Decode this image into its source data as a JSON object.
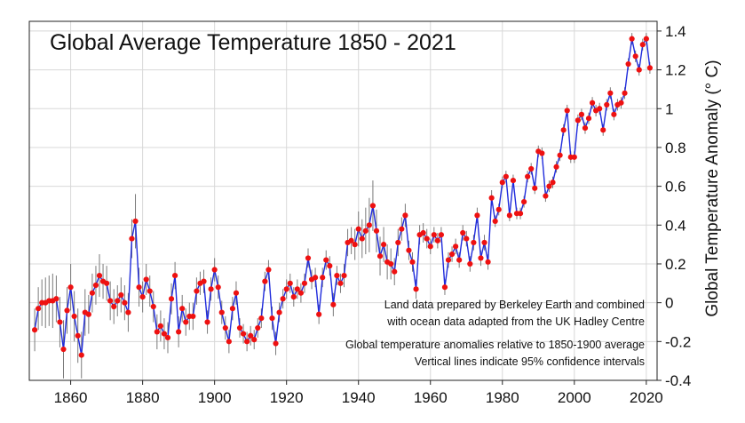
{
  "chart_data": {
    "type": "line",
    "title": "Global Average Temperature 1850 - 2021",
    "xlabel": "",
    "ylabel": "Global Temperature Anomaly (° C)",
    "xlim": [
      1848.5,
      2023
    ],
    "ylim": [
      -0.4,
      1.45
    ],
    "x_ticks": [
      "1860",
      "1880",
      "1900",
      "1920",
      "1940",
      "1960",
      "1980",
      "2000",
      "2020"
    ],
    "y_ticks": [
      "1.4",
      "1.2",
      "1",
      "0.8",
      "0.6",
      "0.4",
      "0.2",
      "0",
      "-0.2",
      "-0.4"
    ],
    "y_axis_position": "right",
    "grid": true,
    "annotations": [
      "Land data prepared by Berkeley Earth and combined",
      "with ocean data adapted from the UK Hadley Centre",
      "Global temperature anomalies relative to 1850-1900 average",
      "Vertical lines indicate 95% confidence intervals"
    ],
    "colors": {
      "line": "#1f2bdc",
      "point": "#ee1111",
      "error_bar": "#7a7a7a",
      "grid": "#d8d8d8"
    },
    "x": [
      1850,
      1851,
      1852,
      1853,
      1854,
      1855,
      1856,
      1857,
      1858,
      1859,
      1860,
      1861,
      1862,
      1863,
      1864,
      1865,
      1866,
      1867,
      1868,
      1869,
      1870,
      1871,
      1872,
      1873,
      1874,
      1875,
      1876,
      1877,
      1878,
      1879,
      1880,
      1881,
      1882,
      1883,
      1884,
      1885,
      1886,
      1887,
      1888,
      1889,
      1890,
      1891,
      1892,
      1893,
      1894,
      1895,
      1896,
      1897,
      1898,
      1899,
      1900,
      1901,
      1902,
      1903,
      1904,
      1905,
      1906,
      1907,
      1908,
      1909,
      1910,
      1911,
      1912,
      1913,
      1914,
      1915,
      1916,
      1917,
      1918,
      1919,
      1920,
      1921,
      1922,
      1923,
      1924,
      1925,
      1926,
      1927,
      1928,
      1929,
      1930,
      1931,
      1932,
      1933,
      1934,
      1935,
      1936,
      1937,
      1938,
      1939,
      1940,
      1941,
      1942,
      1943,
      1944,
      1945,
      1946,
      1947,
      1948,
      1949,
      1950,
      1951,
      1952,
      1953,
      1954,
      1955,
      1956,
      1957,
      1958,
      1959,
      1960,
      1961,
      1962,
      1963,
      1964,
      1965,
      1966,
      1967,
      1968,
      1969,
      1970,
      1971,
      1972,
      1973,
      1974,
      1975,
      1976,
      1977,
      1978,
      1979,
      1980,
      1981,
      1982,
      1983,
      1984,
      1985,
      1986,
      1987,
      1988,
      1989,
      1990,
      1991,
      1992,
      1993,
      1994,
      1995,
      1996,
      1997,
      1998,
      1999,
      2000,
      2001,
      2002,
      2003,
      2004,
      2005,
      2006,
      2007,
      2008,
      2009,
      2010,
      2011,
      2012,
      2013,
      2014,
      2015,
      2016,
      2017,
      2018,
      2019,
      2020,
      2021
    ],
    "series": [
      {
        "values": [
          -0.14,
          -0.03,
          0.0,
          0.0,
          0.01,
          0.01,
          0.02,
          -0.1,
          -0.24,
          -0.04,
          0.08,
          -0.07,
          -0.17,
          -0.27,
          -0.05,
          -0.06,
          0.05,
          0.09,
          0.14,
          0.11,
          0.1,
          0.01,
          -0.02,
          0.01,
          0.04,
          0.0,
          -0.05,
          0.33,
          0.42,
          0.08,
          0.03,
          0.12,
          0.06,
          -0.02,
          -0.15,
          -0.12,
          -0.16,
          -0.18,
          0.02,
          0.14,
          -0.15,
          -0.03,
          -0.1,
          -0.07,
          -0.07,
          0.06,
          0.1,
          0.11,
          -0.1,
          0.07,
          0.17,
          0.08,
          -0.05,
          -0.13,
          -0.2,
          -0.03,
          0.05,
          -0.13,
          -0.16,
          -0.2,
          -0.17,
          -0.19,
          -0.13,
          -0.08,
          0.11,
          0.17,
          -0.08,
          -0.21,
          -0.05,
          0.02,
          0.07,
          0.1,
          0.03,
          0.07,
          0.05,
          0.1,
          0.23,
          0.12,
          0.13,
          -0.06,
          0.13,
          0.22,
          0.19,
          -0.01,
          0.14,
          0.1,
          0.14,
          0.31,
          0.32,
          0.3,
          0.38,
          0.33,
          0.37,
          0.4,
          0.5,
          0.37,
          0.24,
          0.3,
          0.21,
          0.2,
          0.16,
          0.31,
          0.38,
          0.45,
          0.27,
          0.21,
          0.07,
          0.35,
          0.36,
          0.33,
          0.29,
          0.35,
          0.32,
          0.35,
          0.08,
          0.22,
          0.25,
          0.29,
          0.22,
          0.36,
          0.33,
          0.2,
          0.31,
          0.45,
          0.23,
          0.31,
          0.21,
          0.54,
          0.42,
          0.48,
          0.62,
          0.65,
          0.45,
          0.63,
          0.46,
          0.46,
          0.52,
          0.65,
          0.69,
          0.59,
          0.78,
          0.77,
          0.55,
          0.6,
          0.62,
          0.7,
          0.76,
          0.89,
          0.99,
          0.75,
          0.75,
          0.94,
          0.97,
          0.9,
          0.95,
          1.03,
          0.99,
          1.0,
          0.89,
          1.02,
          1.08,
          0.97,
          1.02,
          1.03,
          1.08,
          1.23,
          1.36,
          1.27,
          1.2,
          1.33,
          1.36,
          1.21
        ]
      }
    ],
    "error_halfwidths": [
      0.11,
      0.11,
      0.12,
      0.13,
      0.13,
      0.14,
      0.12,
      0.13,
      0.15,
      0.12,
      0.12,
      0.13,
      0.14,
      0.12,
      0.12,
      0.1,
      0.1,
      0.1,
      0.11,
      0.09,
      0.09,
      0.1,
      0.09,
      0.08,
      0.09,
      0.09,
      0.1,
      0.1,
      0.14,
      0.1,
      0.08,
      0.08,
      0.08,
      0.08,
      0.09,
      0.08,
      0.08,
      0.08,
      0.08,
      0.07,
      0.08,
      0.07,
      0.07,
      0.07,
      0.07,
      0.07,
      0.06,
      0.06,
      0.06,
      0.06,
      0.06,
      0.06,
      0.06,
      0.06,
      0.06,
      0.06,
      0.06,
      0.05,
      0.05,
      0.05,
      0.05,
      0.05,
      0.05,
      0.05,
      0.05,
      0.05,
      0.06,
      0.06,
      0.05,
      0.05,
      0.05,
      0.05,
      0.05,
      0.05,
      0.05,
      0.05,
      0.05,
      0.05,
      0.05,
      0.05,
      0.05,
      0.05,
      0.05,
      0.06,
      0.05,
      0.05,
      0.06,
      0.07,
      0.07,
      0.08,
      0.09,
      0.1,
      0.12,
      0.14,
      0.13,
      0.11,
      0.1,
      0.09,
      0.09,
      0.08,
      0.07,
      0.07,
      0.06,
      0.06,
      0.05,
      0.05,
      0.05,
      0.05,
      0.05,
      0.05,
      0.04,
      0.04,
      0.04,
      0.04,
      0.04,
      0.04,
      0.04,
      0.04,
      0.04,
      0.04,
      0.04,
      0.04,
      0.04,
      0.04,
      0.04,
      0.04,
      0.04,
      0.04,
      0.03,
      0.03,
      0.03,
      0.03,
      0.03,
      0.03,
      0.03,
      0.03,
      0.03,
      0.03,
      0.03,
      0.03,
      0.03,
      0.03,
      0.03,
      0.03,
      0.03,
      0.03,
      0.03,
      0.03,
      0.03,
      0.03,
      0.03,
      0.03,
      0.03,
      0.03,
      0.03,
      0.03,
      0.03,
      0.03,
      0.03,
      0.03,
      0.03,
      0.03,
      0.03,
      0.03,
      0.03,
      0.03,
      0.03,
      0.03,
      0.03,
      0.03,
      0.03,
      0.03,
      0.03,
      0.03
    ]
  }
}
